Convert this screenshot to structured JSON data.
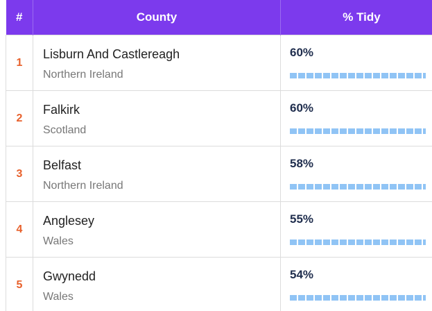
{
  "table": {
    "header": [
      "#",
      "County",
      "% Tidy"
    ],
    "rows": [
      {
        "rank": "1",
        "county": "Lisburn And Castlereagh",
        "region": "Northern Ireland",
        "tidy": "60%"
      },
      {
        "rank": "2",
        "county": "Falkirk",
        "region": "Scotland",
        "tidy": "60%"
      },
      {
        "rank": "3",
        "county": "Belfast",
        "region": "Northern Ireland",
        "tidy": "58%"
      },
      {
        "rank": "4",
        "county": "Anglesey",
        "region": "Wales",
        "tidy": "55%"
      },
      {
        "rank": "5",
        "county": "Gwynedd",
        "region": "Wales",
        "tidy": "54%"
      }
    ]
  }
}
